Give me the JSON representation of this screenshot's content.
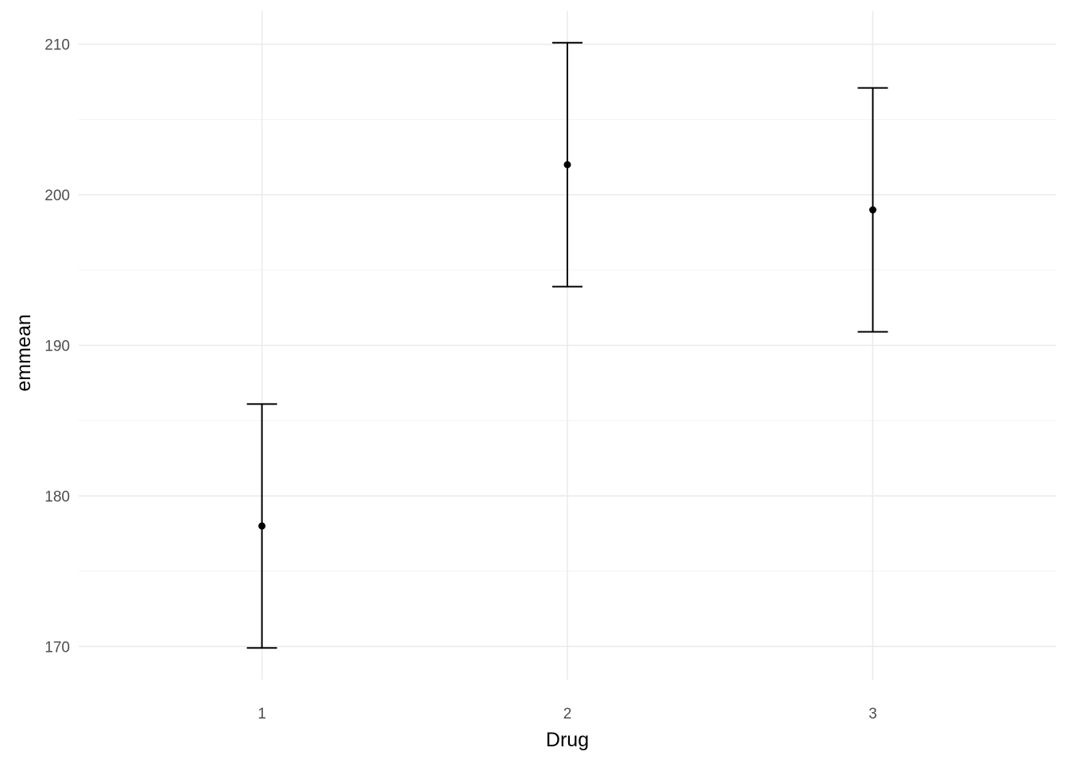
{
  "chart_data": {
    "type": "scatter",
    "title": "",
    "xlabel": "Drug",
    "ylabel": "emmean",
    "categories": [
      "1",
      "2",
      "3"
    ],
    "values": [
      178,
      202,
      199
    ],
    "lower": [
      169.9,
      193.9,
      190.9
    ],
    "upper": [
      186.1,
      210.1,
      207.1
    ],
    "ylim": [
      167.8,
      212.2
    ],
    "yticks": [
      170,
      180,
      190,
      200,
      210
    ],
    "yticks_labels": [
      "170",
      "180",
      "190",
      "200",
      "210"
    ],
    "y_minor_ticks": [
      175,
      185,
      195,
      205
    ],
    "grid": true,
    "legend": "none",
    "colors": {
      "point": "#000000",
      "errorbar": "#000000",
      "grid_major": "#ebebeb",
      "grid_minor": "#f3f3f3",
      "tick_text": "#4d4d4d"
    }
  }
}
